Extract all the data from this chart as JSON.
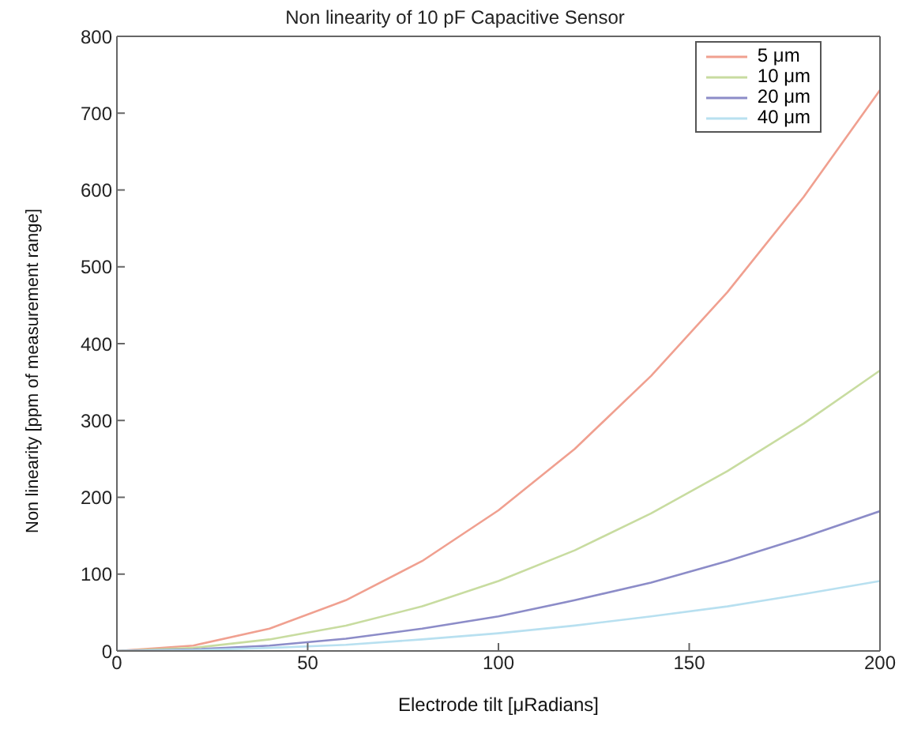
{
  "chart_data": {
    "type": "line",
    "title": "Non linearity of 10 pF Capacitive Sensor",
    "xlabel": "Electrode tilt [μRadians]",
    "ylabel": "Non linearity [ppm of measurement range]",
    "x": [
      0,
      20,
      40,
      60,
      80,
      100,
      120,
      140,
      160,
      180,
      200
    ],
    "series": [
      {
        "name": "5 μm",
        "color": "#f0a090",
        "values": [
          0,
          7,
          29,
          66,
          117,
          183,
          263,
          358,
          467,
          591,
          730
        ]
      },
      {
        "name": "10 μm",
        "color": "#c8dca0",
        "values": [
          0,
          4,
          15,
          33,
          58,
          91,
          131,
          179,
          234,
          296,
          365
        ]
      },
      {
        "name": "20 μm",
        "color": "#8c8cc8",
        "values": [
          0,
          2,
          7,
          16,
          29,
          45,
          66,
          89,
          117,
          148,
          182
        ]
      },
      {
        "name": "40 μm",
        "color": "#b8e0f0",
        "values": [
          0,
          1,
          4,
          8,
          15,
          23,
          33,
          45,
          58,
          74,
          91
        ]
      }
    ],
    "xlim": [
      0,
      200
    ],
    "xticks": [
      0,
      50,
      100,
      150,
      200
    ],
    "ylim": [
      0,
      800
    ],
    "yticks": [
      0,
      100,
      200,
      300,
      400,
      500,
      600,
      700,
      800
    ],
    "grid": false,
    "legend": "top right",
    "marker": "none",
    "line_style": "solid"
  }
}
